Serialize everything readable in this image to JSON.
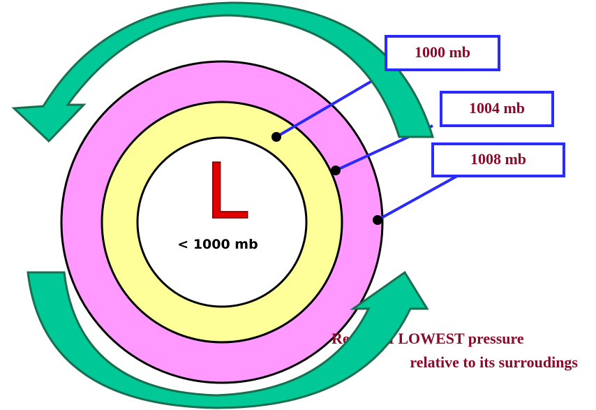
{
  "isobars": [
    {
      "label": "1000 mb"
    },
    {
      "label": "1004 mb"
    },
    {
      "label": "1008 mb"
    }
  ],
  "center": {
    "symbol": "L",
    "label": "< 1000 mb"
  },
  "caption": {
    "line1": "Region of LOWEST pressure",
    "line2": "relative to its surroudings"
  }
}
